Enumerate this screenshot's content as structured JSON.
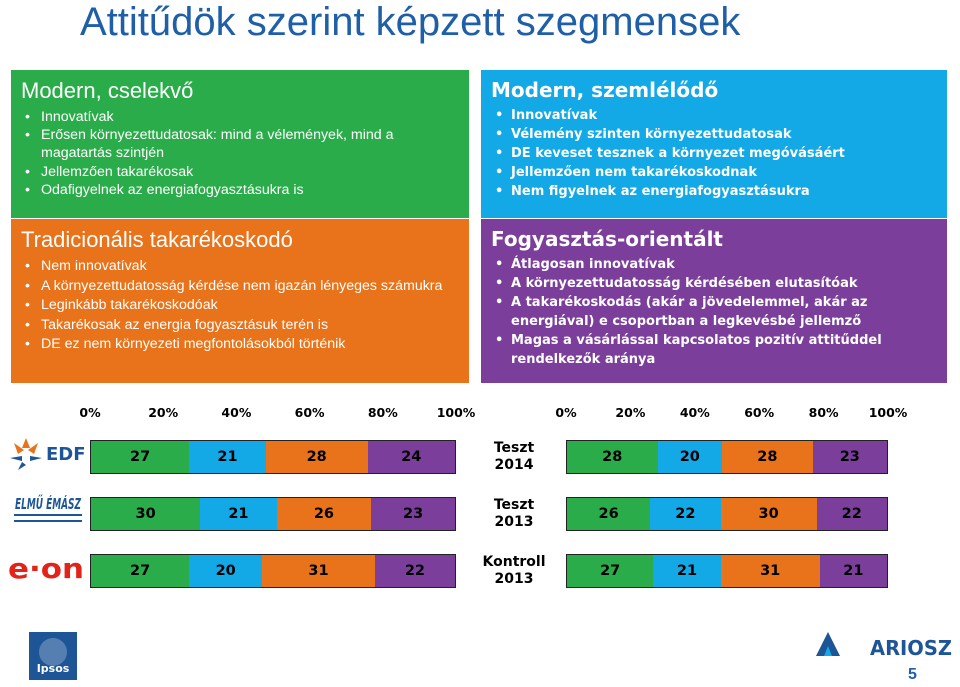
{
  "title": "Attitűdök szerint képzett szegmensek",
  "segments": {
    "green": {
      "title": "Modern, cselekvő",
      "items": [
        "Innovatívak",
        "Erősen környezettudatosak: mind a vélemények, mind a magatartás szintjén",
        "Jellemzően takarékosak",
        "Odafigyelnek az energiafogyasztásukra is"
      ],
      "color": "#2bac4a"
    },
    "orange": {
      "title": "Tradicionális takarékoskodó",
      "items": [
        "Nem innovatívak",
        "A környezettudatosság kérdése nem igazán lényeges számukra",
        "Leginkább takarékoskodóak",
        "Takarékosak az energia fogyasztásuk terén is",
        "DE ez nem környezeti megfontolásokból történik"
      ],
      "color": "#e8731a"
    },
    "blue": {
      "title": "Modern, szemlélődő",
      "items": [
        "Innovatívak",
        "Vélemény szinten környezettudatosak",
        "DE keveset tesznek a környezet megóvásáért",
        "Jellemzően nem takarékoskodnak",
        "Nem figyelnek az energiafogyasztásukra"
      ],
      "color": "#13a8e6"
    },
    "purple": {
      "title": "Fogyasztás-orientált",
      "items": [
        "Átlagosan innovatívak",
        "A környezettudatosság kérdésében elutasítóak",
        "A takarékoskodás (akár a jövedelemmel, akár az energiával) e csoportban a legkevésbé jellemző",
        "Magas a vásárlással kapcsolatos pozitív attitűddel rendelkezők aránya"
      ],
      "color": "#7b3f9b"
    }
  },
  "chart_data": [
    {
      "type": "bar",
      "stacked": true,
      "orientation": "horizontal",
      "xlim": [
        0,
        100
      ],
      "ticks": [
        "0%",
        "20%",
        "40%",
        "60%",
        "80%",
        "100%"
      ],
      "categories": [
        "EDF DÉMÁSZ",
        "ELMŰ ÉMÁSZ",
        "E.ON"
      ],
      "series": [
        {
          "color": "#2bac4a",
          "values": [
            27,
            30,
            27
          ]
        },
        {
          "color": "#13a8e6",
          "values": [
            21,
            21,
            20
          ]
        },
        {
          "color": "#e8731a",
          "values": [
            28,
            26,
            31
          ]
        },
        {
          "color": "#7b3f9b",
          "values": [
            24,
            23,
            22
          ]
        }
      ]
    },
    {
      "type": "bar",
      "stacked": true,
      "orientation": "horizontal",
      "xlim": [
        0,
        100
      ],
      "ticks": [
        "0%",
        "20%",
        "40%",
        "60%",
        "80%",
        "100%"
      ],
      "categories": [
        [
          "Teszt",
          "2014"
        ],
        [
          "Teszt",
          "2013"
        ],
        [
          "Kontroll",
          "2013"
        ]
      ],
      "series": [
        {
          "color": "#2bac4a",
          "values": [
            28,
            26,
            27
          ]
        },
        {
          "color": "#13a8e6",
          "values": [
            20,
            22,
            21
          ]
        },
        {
          "color": "#e8731a",
          "values": [
            28,
            30,
            31
          ]
        },
        {
          "color": "#7b3f9b",
          "values": [
            23,
            22,
            21
          ]
        }
      ]
    }
  ],
  "logos": {
    "edf": "EDF DÉMÁSZ",
    "elmu": "ELMŰ ÉMÁSZ",
    "eon": "e·on",
    "ipsos": "Ipsos",
    "ariosz": "ARIOSZ"
  },
  "page_number": "5"
}
